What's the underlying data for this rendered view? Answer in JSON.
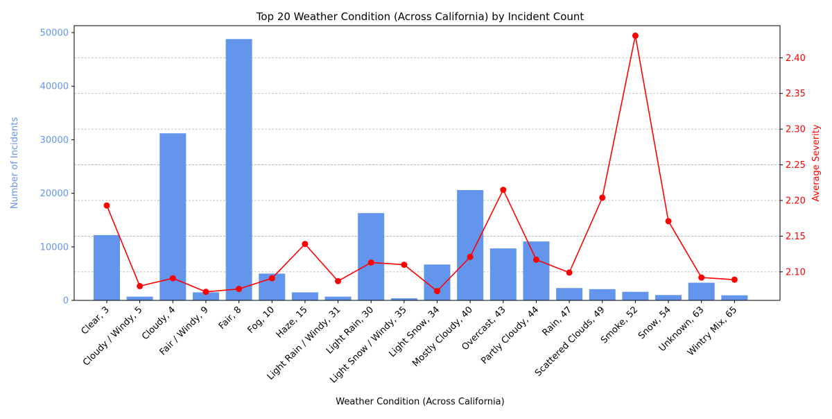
{
  "chart_data": {
    "type": "bar",
    "title": "Top 20 Weather Condition (Across California) by Incident Count",
    "xlabel": "Weather Condition (Across California)",
    "ylabel_left": "Number of Incidents",
    "ylabel_right": "Average Severity",
    "categories": [
      "Clear, 3",
      "Cloudy / Windy, 5",
      "Cloudy, 4",
      "Fair / Windy, 9",
      "Fair, 8",
      "Fog, 10",
      "Haze, 15",
      "Light Rain / Windy, 31",
      "Light Rain, 30",
      "Light Snow / Windy, 35",
      "Light Snow, 34",
      "Mostly Cloudy, 40",
      "Overcast, 43",
      "Partly Cloudy, 44",
      "Rain, 47",
      "Scattered Clouds, 49",
      "Smoke, 52",
      "Snow, 54",
      "Unknown, 63",
      "Wintry Mix, 65"
    ],
    "series": [
      {
        "name": "",
        "type": "bar",
        "axis": "left",
        "color": "#6495ED",
        "values": [
          12200,
          700,
          31200,
          1500,
          48800,
          5000,
          1500,
          700,
          16300,
          400,
          6700,
          20600,
          9700,
          11000,
          2300,
          2100,
          1600,
          1000,
          3300,
          950
        ]
      },
      {
        "name": "",
        "type": "line",
        "axis": "right",
        "color": "#FF0000",
        "values": [
          2.193,
          2.08,
          2.091,
          2.072,
          2.076,
          2.091,
          2.139,
          2.087,
          2.113,
          2.11,
          2.073,
          2.121,
          2.215,
          2.117,
          2.099,
          2.204,
          2.431,
          2.171,
          2.092,
          2.089
        ]
      }
    ],
    "y_left": {
      "lim": [
        0,
        51300
      ],
      "ticks": [
        0,
        10000,
        20000,
        30000,
        40000,
        50000
      ],
      "color": "#6495ED"
    },
    "y_right": {
      "lim": [
        2.06,
        2.445
      ],
      "ticks": [
        "2.10",
        "2.15",
        "2.20",
        "2.25",
        "2.30",
        "2.35",
        "2.40"
      ],
      "color": "#FF0000"
    },
    "grid": "horizontal dashed, right axis"
  }
}
